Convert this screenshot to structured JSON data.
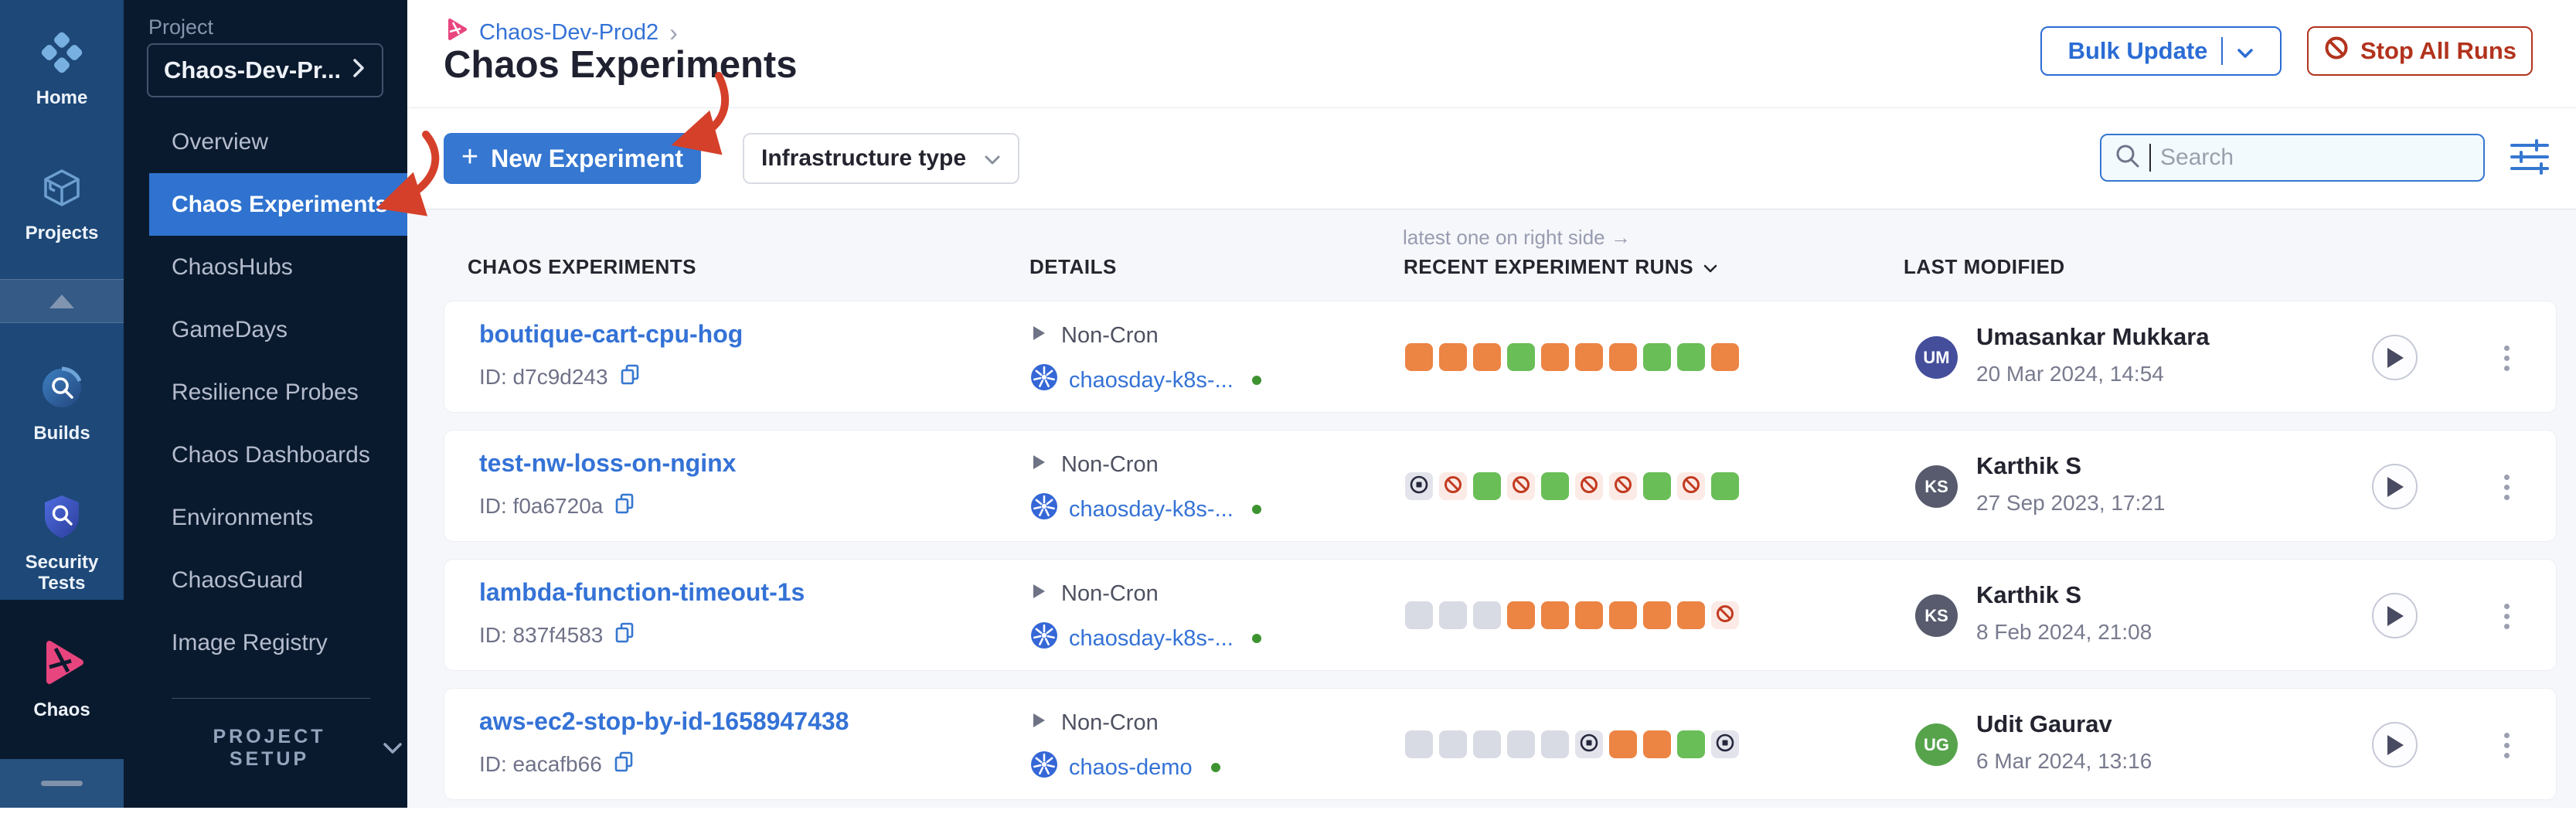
{
  "colors": {
    "accent_blue": "#3577d1",
    "link_blue": "#3472d6",
    "danger_red": "#b2331d",
    "annotation_red": "#d5402a",
    "run_orange": "#ec8444",
    "run_green": "#69be57",
    "run_gray": "#d9dbe4",
    "run_failed_icon": "#c23a20",
    "run_stopped_icon": "#25273c",
    "sidebar_bg": "#0a1a2e",
    "rail_bg": "#1d4878",
    "selected_item_bg": "#2f72cf"
  },
  "rail": {
    "items": [
      {
        "label": "Home",
        "icon": "home-icon"
      },
      {
        "label": "Projects",
        "icon": "cube-icon"
      },
      {
        "label": "Builds",
        "icon": "builds-icon"
      },
      {
        "label": "Security Tests",
        "icon": "shield-icon"
      },
      {
        "label": "Chaos",
        "icon": "chaos-icon",
        "active": true
      }
    ]
  },
  "sidebar": {
    "project_label": "Project",
    "project_name": "Chaos-Dev-Pr...",
    "items": [
      {
        "label": "Overview",
        "active": false
      },
      {
        "label": "Chaos Experiments",
        "active": true
      },
      {
        "label": "ChaosHubs",
        "active": false
      },
      {
        "label": "GameDays",
        "active": false
      },
      {
        "label": "Resilience Probes",
        "active": false
      },
      {
        "label": "Chaos Dashboards",
        "active": false
      },
      {
        "label": "Environments",
        "active": false
      },
      {
        "label": "ChaosGuard",
        "active": false
      },
      {
        "label": "Image Registry",
        "active": false
      }
    ],
    "setup_label": "PROJECT SETUP"
  },
  "header": {
    "breadcrumb_project": "Chaos-Dev-Prod2",
    "breadcrumb_sep": "›",
    "title": "Chaos Experiments",
    "bulk_update_label": "Bulk Update",
    "stop_all_label": "Stop All Runs"
  },
  "toolbar": {
    "plus": "+",
    "new_experiment_label": "New Experiment",
    "infrastructure_type_label": "Infrastructure type",
    "search_placeholder": "Search"
  },
  "table": {
    "runs_note": "latest one on right side →",
    "columns": [
      "CHAOS EXPERIMENTS",
      "DETAILS",
      "RECENT EXPERIMENT RUNS",
      "LAST MODIFIED"
    ],
    "rows": [
      {
        "name": "boutique-cart-cpu-hog",
        "id": "ID: d7c9d243",
        "schedule": "Non-Cron",
        "infra": "chaosday-k8s-...",
        "infra_status": "connected",
        "runs": [
          "orange",
          "orange",
          "orange",
          "green",
          "orange",
          "orange",
          "orange",
          "green",
          "green",
          "orange"
        ],
        "user": "Umasankar Mukkara",
        "initials": "UM",
        "avatar_color": "#454e9b",
        "date": "20 Mar 2024, 14:54"
      },
      {
        "name": "test-nw-loss-on-nginx",
        "id": "ID: f0a6720a",
        "schedule": "Non-Cron",
        "infra": "chaosday-k8s-...",
        "infra_status": "connected",
        "runs": [
          "stopped",
          "failed",
          "green",
          "failed",
          "green",
          "failed",
          "failed",
          "green",
          "failed",
          "green"
        ],
        "user": "Karthik S",
        "initials": "KS",
        "avatar_color": "#575b6d",
        "date": "27 Sep 2023, 17:21"
      },
      {
        "name": "lambda-function-timeout-1s",
        "id": "ID: 837f4583",
        "schedule": "Non-Cron",
        "infra": "chaosday-k8s-...",
        "infra_status": "connected",
        "runs": [
          "gray",
          "gray",
          "gray",
          "orange",
          "orange",
          "orange",
          "orange",
          "orange",
          "orange",
          "failed"
        ],
        "user": "Karthik S",
        "initials": "KS",
        "avatar_color": "#575b6d",
        "date": "8 Feb 2024, 21:08"
      },
      {
        "name": "aws-ec2-stop-by-id-1658947438",
        "id": "ID: eacafb66",
        "schedule": "Non-Cron",
        "infra": "chaos-demo",
        "infra_status": "connected",
        "runs": [
          "gray",
          "gray",
          "gray",
          "gray",
          "gray",
          "stopped",
          "orange",
          "orange",
          "green",
          "stopped"
        ],
        "user": "Udit Gaurav",
        "initials": "UG",
        "avatar_color": "#57a34c",
        "date": "6 Mar 2024, 13:16"
      }
    ]
  }
}
